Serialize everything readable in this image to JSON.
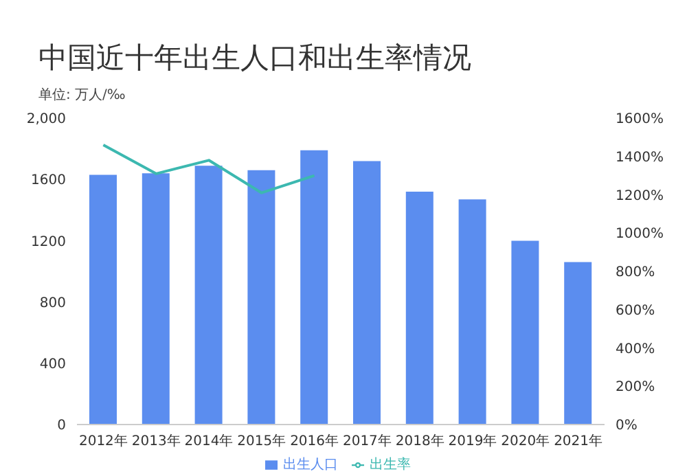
{
  "chart_data": {
    "type": "bar",
    "title": "中国近十年出生人口和出生率情况",
    "subtitle": "单位: 万人/‰",
    "categories": [
      "2012年",
      "2013年",
      "2014年",
      "2015年",
      "2016年",
      "2017年",
      "2018年",
      "2019年",
      "2020年",
      "2021年"
    ],
    "series": [
      {
        "name": "出生人口",
        "color": "#5b8def",
        "values": [
          1630,
          1640,
          1690,
          1660,
          1790,
          1720,
          1520,
          1470,
          1200,
          1060
        ]
      },
      {
        "name": "出生率",
        "type": "line",
        "axis": "y2",
        "color": "#3cb8b0",
        "values": [
          1460,
          1310,
          1380,
          1210,
          1300,
          null,
          null,
          null,
          null,
          null
        ]
      }
    ],
    "ylim": [
      0,
      2000
    ],
    "yticks": [
      0,
      400,
      800,
      1200,
      1600,
      {
        "value": 2000,
        "label": "2,000"
      }
    ],
    "y2lim": [
      0,
      1600
    ],
    "y2ticks": [
      {
        "value": 0,
        "label": "0%"
      },
      {
        "value": 200,
        "label": "200%"
      },
      {
        "value": 400,
        "label": "400%"
      },
      {
        "value": 600,
        "label": "600%"
      },
      {
        "value": 800,
        "label": "800%"
      },
      {
        "value": 1000,
        "label": "1000%"
      },
      {
        "value": 1200,
        "label": "1200%"
      },
      {
        "value": 1400,
        "label": "1400%"
      },
      {
        "value": 1600,
        "label": "1600%"
      }
    ],
    "grid": false,
    "legend": "bottom",
    "marker": "none",
    "line_style": "solid"
  }
}
